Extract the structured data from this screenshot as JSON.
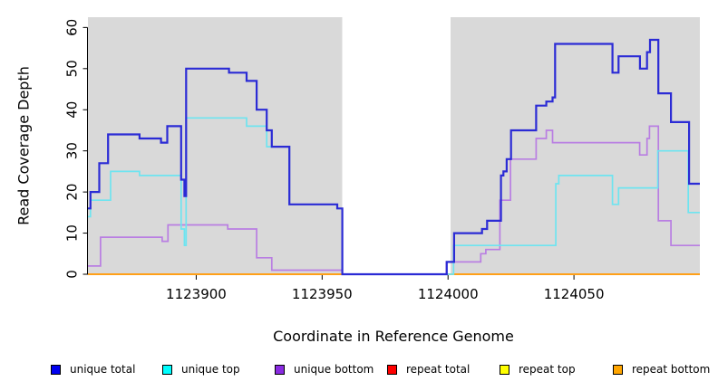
{
  "chart_data": {
    "type": "line",
    "subtype": "step-post",
    "title": "",
    "xlabel": "Coordinate in Reference Genome",
    "ylabel": "Read Coverage Depth",
    "xlim": [
      1123857,
      1124100
    ],
    "ylim": [
      0,
      62.5
    ],
    "x_ticks": [
      1123900,
      1123950,
      1124000,
      1124050
    ],
    "y_ticks": [
      0,
      10,
      20,
      30,
      40,
      50,
      60
    ],
    "grid": false,
    "legend_position": "bottom",
    "plot_bg_color": "#d9d9d9",
    "page_bg_color": "#ffffff",
    "axis_color": "#000000",
    "no_data_gap": {
      "from": 1123958,
      "to": 1124001,
      "color": "#ffffff"
    },
    "series": [
      {
        "name": "repeat total",
        "key": "repeat-total",
        "legend_color": "#ff0000",
        "line_color": "#ff0000",
        "width": 1.4,
        "points": [
          [
            1123857,
            0
          ]
        ]
      },
      {
        "name": "repeat top",
        "key": "repeat-top",
        "legend_color": "#ffff00",
        "line_color": "#ffff00",
        "width": 1.4,
        "points": [
          [
            1123857,
            0
          ]
        ]
      },
      {
        "name": "repeat bottom",
        "key": "repeat-bottom",
        "legend_color": "#ffa500",
        "line_color": "#ffa018",
        "width": 2,
        "points": [
          [
            1123857,
            0
          ]
        ]
      },
      {
        "name": "unique bottom",
        "key": "unique-bottom",
        "legend_color": "#8a2be2",
        "line_color": "#b97ee2",
        "width": 1.7,
        "points": [
          [
            1123857,
            2
          ],
          [
            1123862,
            9
          ],
          [
            1123886.5,
            8
          ],
          [
            1123888.8,
            12
          ],
          [
            1123912.5,
            11
          ],
          [
            1123924,
            4
          ],
          [
            1123930,
            1
          ],
          [
            1123958,
            0
          ],
          [
            1123999.3,
            3
          ],
          [
            1124013,
            5
          ],
          [
            1124015,
            6
          ],
          [
            1124020.6,
            18
          ],
          [
            1124024.8,
            28
          ],
          [
            1124035,
            33
          ],
          [
            1124039,
            35
          ],
          [
            1124041.5,
            32
          ],
          [
            1124076.1,
            29
          ],
          [
            1124079,
            33
          ],
          [
            1124080,
            36
          ],
          [
            1124083.5,
            13
          ],
          [
            1124088.5,
            7
          ]
        ]
      },
      {
        "name": "unique top",
        "key": "unique-top",
        "legend_color": "#00ffff",
        "line_color": "#6ee4f0",
        "width": 1.7,
        "points": [
          [
            1123857,
            14
          ],
          [
            1123858,
            18
          ],
          [
            1123866,
            25
          ],
          [
            1123877.5,
            24
          ],
          [
            1123894,
            11
          ],
          [
            1123895.3,
            7
          ],
          [
            1123896,
            38
          ],
          [
            1123920,
            36
          ],
          [
            1123928,
            31
          ],
          [
            1123937,
            17
          ],
          [
            1123956,
            16
          ],
          [
            1123958,
            0
          ],
          [
            1124002.2,
            7
          ],
          [
            1124042.8,
            22
          ],
          [
            1124044,
            24
          ],
          [
            1124065.3,
            17
          ],
          [
            1124067.7,
            21
          ],
          [
            1124083.3,
            30
          ],
          [
            1124095.4,
            15
          ]
        ]
      },
      {
        "name": "unique total",
        "key": "unique-total",
        "legend_color": "#0000f0",
        "line_color": "#2b2bd5",
        "width": 2.2,
        "points": [
          [
            1123857,
            16
          ],
          [
            1123858,
            20
          ],
          [
            1123861.5,
            27
          ],
          [
            1123865,
            34
          ],
          [
            1123877.5,
            33
          ],
          [
            1123886,
            32
          ],
          [
            1123888.5,
            36
          ],
          [
            1123894,
            23
          ],
          [
            1123895.3,
            19
          ],
          [
            1123896,
            50
          ],
          [
            1123913,
            49
          ],
          [
            1123920,
            47
          ],
          [
            1123924,
            40
          ],
          [
            1123928,
            35
          ],
          [
            1123930,
            31
          ],
          [
            1123937,
            17
          ],
          [
            1123956,
            16
          ],
          [
            1123958,
            0
          ],
          [
            1123999.5,
            3
          ],
          [
            1124002.4,
            10
          ],
          [
            1124013.5,
            11
          ],
          [
            1124015.5,
            13
          ],
          [
            1124021,
            24
          ],
          [
            1124022,
            25
          ],
          [
            1124023.3,
            28
          ],
          [
            1124025,
            35
          ],
          [
            1124035,
            41
          ],
          [
            1124039,
            42
          ],
          [
            1124041.5,
            43
          ],
          [
            1124042.5,
            56
          ],
          [
            1124065.3,
            49
          ],
          [
            1124067.7,
            53
          ],
          [
            1124076.2,
            50
          ],
          [
            1124079,
            54
          ],
          [
            1124080.2,
            57
          ],
          [
            1124083.5,
            44
          ],
          [
            1124088.5,
            37
          ],
          [
            1124095.7,
            22
          ]
        ]
      }
    ],
    "legend_order": [
      "unique total",
      "unique top",
      "unique bottom",
      "repeat total",
      "repeat top",
      "repeat bottom"
    ]
  }
}
